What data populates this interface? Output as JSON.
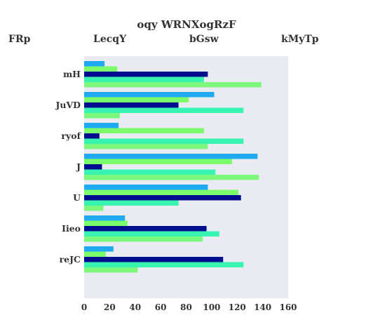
{
  "chart_data": {
    "type": "bar",
    "orientation": "horizontal",
    "title": "oqy WRNXogRzF",
    "xlabel": "",
    "ylabel": "",
    "xlim": [
      0,
      160
    ],
    "xticks": [
      0,
      20,
      40,
      60,
      80,
      100,
      120,
      140,
      160
    ],
    "grid": false,
    "legend": "top",
    "categories": [
      "mH",
      "JuVD",
      "ryof",
      "J",
      "U",
      "Iieo",
      "reJC"
    ],
    "series": [
      {
        "name": "FRp",
        "color": "#1fa9f0",
        "values": [
          16,
          102,
          27,
          136,
          97,
          32,
          23
        ]
      },
      {
        "name": "LecqY",
        "color": "#7cfb6c",
        "values": [
          26,
          82,
          94,
          116,
          121,
          34,
          17
        ]
      },
      {
        "name": "bGsw",
        "color": "#000d8c",
        "values": [
          97,
          74,
          12,
          14,
          123,
          96,
          109
        ]
      },
      {
        "name": "kMyTp",
        "color": "#37f4b0",
        "values": [
          94,
          125,
          125,
          103,
          74,
          106,
          125
        ]
      },
      {
        "name": "",
        "color": "#7df77c",
        "values": [
          139,
          28,
          97,
          137,
          15,
          93,
          42
        ]
      }
    ]
  }
}
